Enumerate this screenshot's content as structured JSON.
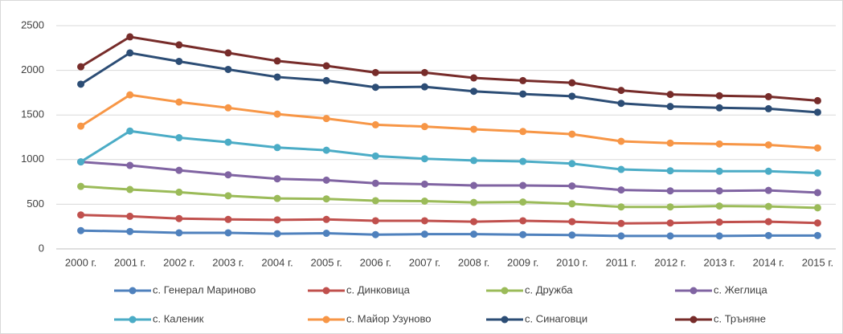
{
  "chart_data": {
    "type": "line",
    "categories": [
      "2000 г.",
      "2001 г.",
      "2002 г.",
      "2003 г.",
      "2004 г.",
      "2005 г.",
      "2006 г.",
      "2007 г.",
      "2008 г.",
      "2009 г.",
      "2010 г.",
      "2011 г.",
      "2012 г.",
      "2013 г.",
      "2014 г.",
      "2015 г."
    ],
    "series": [
      {
        "name": "с. Генерал Мариново",
        "color": "#4F81BD",
        "values": [
          205,
          195,
          180,
          180,
          170,
          175,
          160,
          165,
          165,
          160,
          155,
          145,
          145,
          145,
          150,
          150
        ]
      },
      {
        "name": "с. Динковица",
        "color": "#C0504D",
        "values": [
          380,
          365,
          340,
          330,
          325,
          330,
          315,
          315,
          305,
          315,
          305,
          285,
          290,
          300,
          305,
          290
        ]
      },
      {
        "name": "с. Дружба",
        "color": "#9BBB59",
        "values": [
          700,
          665,
          635,
          595,
          565,
          560,
          540,
          535,
          520,
          525,
          505,
          470,
          470,
          480,
          475,
          460
        ]
      },
      {
        "name": "с. Жеглица",
        "color": "#8064A2",
        "values": [
          975,
          935,
          880,
          830,
          785,
          770,
          735,
          725,
          710,
          710,
          705,
          660,
          650,
          650,
          655,
          630
        ]
      },
      {
        "name": "с. Каленик",
        "color": "#4BACC6",
        "values": [
          975,
          1320,
          1245,
          1195,
          1135,
          1105,
          1040,
          1010,
          990,
          980,
          955,
          890,
          875,
          870,
          870,
          850
        ]
      },
      {
        "name": "с. Майор Узуново",
        "color": "#F79646",
        "values": [
          1375,
          1725,
          1645,
          1580,
          1510,
          1460,
          1390,
          1370,
          1340,
          1315,
          1285,
          1205,
          1185,
          1175,
          1165,
          1130
        ]
      },
      {
        "name": "с. Синаговци",
        "color": "#2C4D75",
        "values": [
          1845,
          2195,
          2100,
          2010,
          1925,
          1885,
          1810,
          1815,
          1765,
          1735,
          1710,
          1630,
          1595,
          1580,
          1570,
          1530
        ]
      },
      {
        "name": "с. Тръняне",
        "color": "#772C2A",
        "values": [
          2040,
          2375,
          2285,
          2195,
          2105,
          2050,
          1975,
          1975,
          1915,
          1885,
          1860,
          1775,
          1730,
          1715,
          1705,
          1660
        ]
      }
    ],
    "ylim": [
      0,
      2500
    ],
    "yticks": [
      0,
      500,
      1000,
      1500,
      2000,
      2500
    ],
    "grid": true,
    "legend": "bottom"
  }
}
